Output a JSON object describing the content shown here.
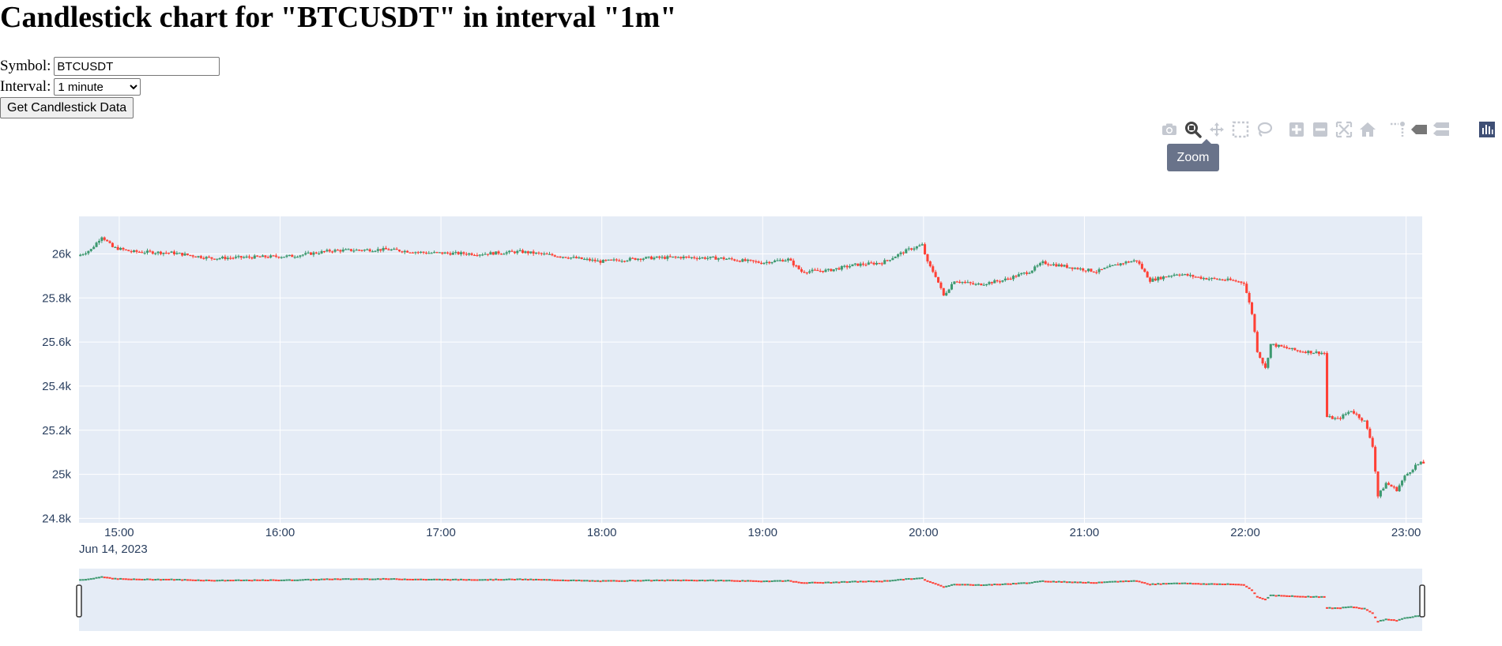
{
  "page": {
    "title": "Candlestick chart for \"BTCUSDT\" in interval \"1m\""
  },
  "form": {
    "symbol_label": "Symbol:",
    "symbol_value": "BTCUSDT",
    "interval_label": "Interval:",
    "interval_selected": "1 minute",
    "submit_label": "Get Candlestick Data"
  },
  "modebar": {
    "buttons": [
      {
        "name": "camera-icon",
        "title": "Download plot as a png"
      },
      {
        "name": "zoom-icon",
        "title": "Zoom",
        "active": true
      },
      {
        "name": "pan-icon",
        "title": "Pan"
      },
      {
        "name": "box-select-icon",
        "title": "Box Select"
      },
      {
        "name": "lasso-select-icon",
        "title": "Lasso Select"
      },
      {
        "name": "zoom-in-icon",
        "title": "Zoom in"
      },
      {
        "name": "zoom-out-icon",
        "title": "Zoom out"
      },
      {
        "name": "autoscale-icon",
        "title": "Autoscale"
      },
      {
        "name": "home-icon",
        "title": "Reset axes"
      },
      {
        "name": "spike-lines-icon",
        "title": "Toggle Spike Lines"
      },
      {
        "name": "hover-closest-icon",
        "title": "Show closest data on hover"
      },
      {
        "name": "hover-compare-icon",
        "title": "Compare data on hover"
      },
      {
        "name": "plotly-logo-icon",
        "title": "Produced with Plotly"
      }
    ],
    "tooltip": "Zoom"
  },
  "colors": {
    "plot_bg": "#e5ecf6",
    "increasing": "#3d9970",
    "decreasing": "#ff4136",
    "tick_text": "#2a3f5f",
    "grid": "#ffffff"
  },
  "chart_data": {
    "type": "candlestick",
    "title": "",
    "xlabel": "",
    "ylabel": "",
    "x_ticks": [
      "15:00",
      "16:00",
      "17:00",
      "18:00",
      "19:00",
      "20:00",
      "21:00",
      "22:00",
      "23:00"
    ],
    "x_date_label": "Jun 14, 2023",
    "x_range": [
      "2023-06-14 14:45",
      "2023-06-14 23:06"
    ],
    "y_ticks": [
      "24.8k",
      "25k",
      "25.2k",
      "25.4k",
      "25.6k",
      "25.8k",
      "26k"
    ],
    "y_range": [
      24780,
      26170
    ],
    "grid": true,
    "rangeslider": true,
    "close_path": [
      [
        "14:45",
        25990
      ],
      [
        "14:50",
        26020
      ],
      [
        "14:54",
        26080
      ],
      [
        "14:58",
        26030
      ],
      [
        "15:05",
        26010
      ],
      [
        "15:20",
        26005
      ],
      [
        "15:35",
        25980
      ],
      [
        "15:50",
        25985
      ],
      [
        "16:05",
        25990
      ],
      [
        "16:20",
        26015
      ],
      [
        "16:40",
        26020
      ],
      [
        "16:55",
        26005
      ],
      [
        "17:15",
        26000
      ],
      [
        "17:30",
        26010
      ],
      [
        "17:45",
        25990
      ],
      [
        "18:00",
        25965
      ],
      [
        "18:15",
        25980
      ],
      [
        "18:30",
        25985
      ],
      [
        "18:45",
        25980
      ],
      [
        "19:00",
        25960
      ],
      [
        "19:10",
        25975
      ],
      [
        "19:15",
        25920
      ],
      [
        "19:25",
        25925
      ],
      [
        "19:35",
        25950
      ],
      [
        "19:45",
        25960
      ],
      [
        "19:55",
        26020
      ],
      [
        "20:00",
        26040
      ],
      [
        "20:02",
        25960
      ],
      [
        "20:05",
        25900
      ],
      [
        "20:08",
        25810
      ],
      [
        "20:12",
        25880
      ],
      [
        "20:20",
        25860
      ],
      [
        "20:30",
        25880
      ],
      [
        "20:40",
        25920
      ],
      [
        "20:45",
        25960
      ],
      [
        "20:55",
        25940
      ],
      [
        "21:05",
        25920
      ],
      [
        "21:15",
        25960
      ],
      [
        "21:20",
        25970
      ],
      [
        "21:25",
        25880
      ],
      [
        "21:35",
        25910
      ],
      [
        "21:45",
        25890
      ],
      [
        "21:55",
        25880
      ],
      [
        "22:00",
        25870
      ],
      [
        "22:03",
        25730
      ],
      [
        "22:05",
        25560
      ],
      [
        "22:08",
        25480
      ],
      [
        "22:10",
        25590
      ],
      [
        "22:20",
        25560
      ],
      [
        "22:30",
        25550
      ],
      [
        "22:31",
        25260
      ],
      [
        "22:35",
        25250
      ],
      [
        "22:40",
        25290
      ],
      [
        "22:45",
        25240
      ],
      [
        "22:48",
        25130
      ],
      [
        "22:50",
        24900
      ],
      [
        "22:53",
        24960
      ],
      [
        "22:57",
        24930
      ],
      [
        "23:00",
        24990
      ],
      [
        "23:04",
        25040
      ],
      [
        "23:06",
        25050
      ]
    ]
  }
}
